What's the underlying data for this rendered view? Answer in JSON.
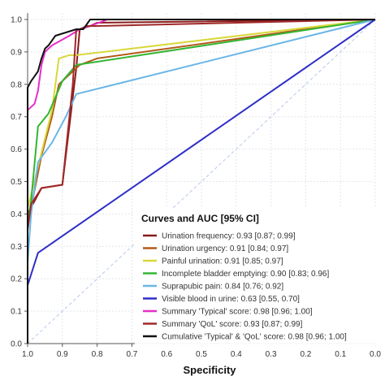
{
  "chart_data": {
    "type": "line",
    "xlabel": "Specificity",
    "ylabel": "",
    "xlim": [
      1.0,
      0.0
    ],
    "ylim": [
      0.0,
      1.0
    ],
    "x_reversed": true,
    "grid": true,
    "x_ticks": [
      "1.0",
      "0.9",
      "0.8",
      "0.7",
      "0.6",
      "0.5",
      "0.4",
      "0.3",
      "0.2",
      "0.1",
      "0.0"
    ],
    "x_tick_values": [
      1.0,
      0.9,
      0.8,
      0.7,
      0.6,
      0.5,
      0.4,
      0.3,
      0.2,
      0.1,
      0.0
    ],
    "y_ticks": [
      "0.0",
      "0.1",
      "0.2",
      "0.3",
      "0.4",
      "0.5",
      "0.6",
      "0.7",
      "0.8",
      "0.9",
      "1.0"
    ],
    "y_tick_values": [
      0.0,
      0.1,
      0.2,
      0.3,
      0.4,
      0.5,
      0.6,
      0.7,
      0.8,
      0.9,
      1.0
    ],
    "reference_line": {
      "x": [
        1.0,
        0.0
      ],
      "y": [
        0.0,
        1.0
      ],
      "color": "#b8c8e8"
    },
    "legend": {
      "title": "Curves and AUC [95% CI]",
      "placement": "bottom-right"
    },
    "series": [
      {
        "name": "Urination frequency: 0.93 [0.87; 0.99]",
        "color": "#8b1a1a",
        "x": [
          1.0,
          1.0,
          0.99,
          0.96,
          0.9,
          0.86,
          0.85,
          0.82,
          0.8,
          0.0
        ],
        "y": [
          0.0,
          0.4,
          0.42,
          0.48,
          0.49,
          0.85,
          0.97,
          0.98,
          0.99,
          1.0
        ]
      },
      {
        "name": "Urination urgency: 0.91 [0.84; 0.97]",
        "color": "#b35a18",
        "x": [
          1.0,
          1.0,
          0.99,
          0.96,
          0.93,
          0.91,
          0.85,
          0.8,
          0.0
        ],
        "y": [
          0.0,
          0.38,
          0.42,
          0.58,
          0.7,
          0.8,
          0.86,
          0.88,
          1.0
        ]
      },
      {
        "name": "Painful urination: 0.91 [0.85; 0.97]",
        "color": "#d8d83a",
        "x": [
          1.0,
          1.0,
          0.99,
          0.93,
          0.91,
          0.88,
          0.86,
          0.0
        ],
        "y": [
          0.0,
          0.42,
          0.46,
          0.72,
          0.88,
          0.89,
          0.89,
          1.0
        ]
      },
      {
        "name": "Incomplete bladder emptying: 0.90 [0.83; 0.96]",
        "color": "#33b533",
        "x": [
          1.0,
          1.0,
          0.99,
          0.97,
          0.94,
          0.9,
          0.86,
          0.0
        ],
        "y": [
          0.0,
          0.37,
          0.44,
          0.67,
          0.71,
          0.81,
          0.86,
          1.0
        ]
      },
      {
        "name": "Suprapubic pain: 0.84 [0.76; 0.92]",
        "color": "#6ab7e6",
        "x": [
          1.0,
          1.0,
          0.99,
          0.97,
          0.93,
          0.89,
          0.86,
          0.0
        ],
        "y": [
          0.0,
          0.25,
          0.4,
          0.56,
          0.62,
          0.7,
          0.77,
          1.0
        ]
      },
      {
        "name": "Visible blood in urine: 0.63 [0.55, 0.70]",
        "color": "#2e2ec8",
        "x": [
          1.0,
          1.0,
          0.97,
          0.0
        ],
        "y": [
          0.0,
          0.18,
          0.28,
          1.0
        ]
      },
      {
        "name": "Summary 'Typical' score: 0.98 [0.96; 1.00]",
        "color": "#e62ec8",
        "x": [
          1.0,
          1.0,
          0.98,
          0.97,
          0.96,
          0.95,
          0.93,
          0.88,
          0.85,
          0.82,
          0.77,
          0.0
        ],
        "y": [
          0.0,
          0.72,
          0.74,
          0.78,
          0.86,
          0.9,
          0.92,
          0.95,
          0.97,
          0.98,
          1.0,
          1.0
        ]
      },
      {
        "name": "Summary 'QoL' score: 0.93 [0.87; 0.99]",
        "color": "#a02828",
        "x": [
          1.0,
          1.0,
          0.99,
          0.96,
          0.9,
          0.87,
          0.86,
          0.85,
          0.83,
          0.8,
          0.0
        ],
        "y": [
          0.0,
          0.35,
          0.43,
          0.48,
          0.49,
          0.8,
          0.97,
          0.97,
          0.98,
          0.98,
          1.0
        ]
      },
      {
        "name": "Cumulative 'Typical' & 'QoL' score: 0.98 [0.96; 1.00]",
        "color": "#111111",
        "x": [
          1.0,
          1.0,
          0.99,
          0.97,
          0.96,
          0.95,
          0.94,
          0.92,
          0.86,
          0.84,
          0.82,
          0.0
        ],
        "y": [
          0.0,
          0.79,
          0.81,
          0.84,
          0.88,
          0.91,
          0.92,
          0.95,
          0.97,
          0.97,
          1.0,
          1.0
        ]
      }
    ]
  }
}
